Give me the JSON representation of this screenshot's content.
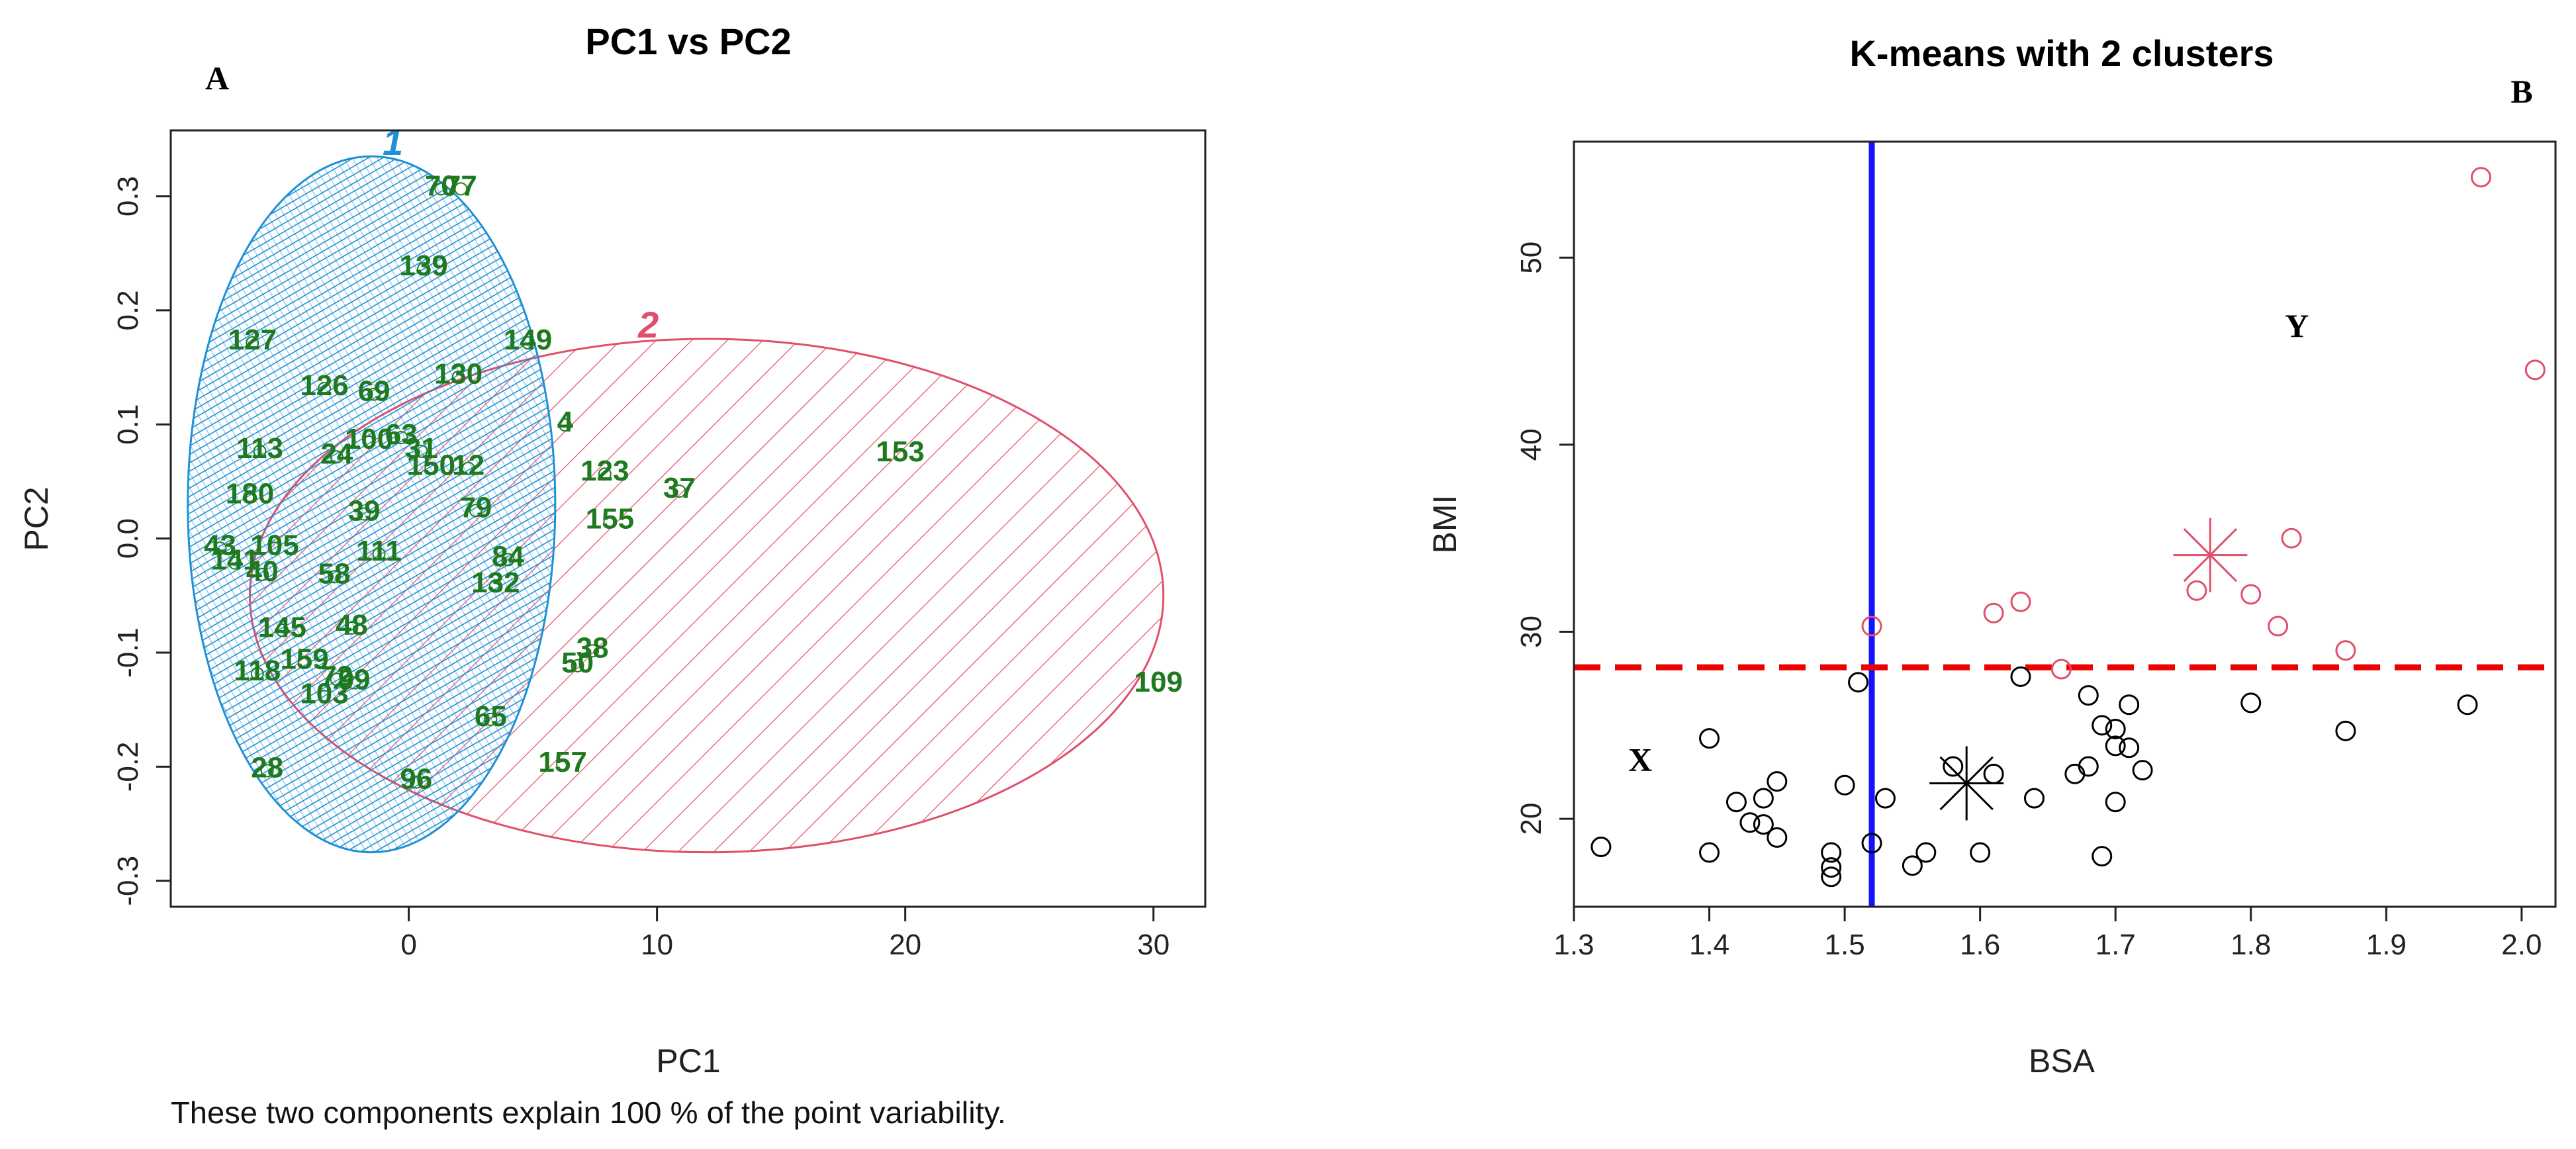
{
  "chart_data": [
    {
      "type": "scatter",
      "panel_label": "A",
      "title": "PC1 vs PC2",
      "xlabel": "PC1",
      "ylabel": "PC2",
      "xlim": [
        -9,
        31.5
      ],
      "ylim": [
        -0.31,
        0.345
      ],
      "xticks": [
        0,
        10,
        20,
        30
      ],
      "yticks": [
        -0.3,
        -0.2,
        -0.1,
        0.0,
        0.1,
        0.2,
        0.3
      ],
      "ytick_labels": [
        "-0.3",
        "-0.2",
        "-0.1",
        "0.0",
        "0.1",
        "0.2",
        "0.3"
      ],
      "note": "These two components explain 100 % of the point variability.",
      "colors": {
        "cluster1": "#1e90d6",
        "cluster2": "#e0506a",
        "labels": "#1f7a1f"
      },
      "clusters": [
        {
          "name": "1",
          "center": [
            -1.5,
            0.03
          ],
          "semi_x": 7.4,
          "semi_y": 0.305,
          "fill": "cross-hatch"
        },
        {
          "name": "2",
          "center": [
            12.0,
            -0.05
          ],
          "semi_x": 18.4,
          "semi_y": 0.225,
          "fill": "diagonal-hatch"
        }
      ],
      "points": [
        {
          "label": "70",
          "x": 1.3,
          "y": 0.31
        },
        {
          "label": "77",
          "x": 2.1,
          "y": 0.31
        },
        {
          "label": "139",
          "x": 0.6,
          "y": 0.24
        },
        {
          "label": "127",
          "x": -6.3,
          "y": 0.175
        },
        {
          "label": "149",
          "x": 4.8,
          "y": 0.175
        },
        {
          "label": "126",
          "x": -3.4,
          "y": 0.135
        },
        {
          "label": "130",
          "x": 2.0,
          "y": 0.145
        },
        {
          "label": "69",
          "x": -1.4,
          "y": 0.13
        },
        {
          "label": "4",
          "x": 6.3,
          "y": 0.103
        },
        {
          "label": "113",
          "x": -6.0,
          "y": 0.08
        },
        {
          "label": "24",
          "x": -2.9,
          "y": 0.075
        },
        {
          "label": "100",
          "x": -1.6,
          "y": 0.088
        },
        {
          "label": "63",
          "x": -0.3,
          "y": 0.092
        },
        {
          "label": "31",
          "x": 0.5,
          "y": 0.08
        },
        {
          "label": "150",
          "x": 0.9,
          "y": 0.065
        },
        {
          "label": "12",
          "x": 2.4,
          "y": 0.065
        },
        {
          "label": "153",
          "x": 19.8,
          "y": 0.077
        },
        {
          "label": "123",
          "x": 7.9,
          "y": 0.06
        },
        {
          "label": "37",
          "x": 10.9,
          "y": 0.045
        },
        {
          "label": "180",
          "x": -6.4,
          "y": 0.04
        },
        {
          "label": "79",
          "x": 2.7,
          "y": 0.028
        },
        {
          "label": "155",
          "x": 8.1,
          "y": 0.018
        },
        {
          "label": "39",
          "x": -1.8,
          "y": 0.025
        },
        {
          "label": "43",
          "x": -7.6,
          "y": -0.005
        },
        {
          "label": "105",
          "x": -5.4,
          "y": -0.005
        },
        {
          "label": "111",
          "x": -1.2,
          "y": -0.01
        },
        {
          "label": "84",
          "x": 4.0,
          "y": -0.015
        },
        {
          "label": "141",
          "x": -7.0,
          "y": -0.018
        },
        {
          "label": "40",
          "x": -5.9,
          "y": -0.028
        },
        {
          "label": "58",
          "x": -3.0,
          "y": -0.03
        },
        {
          "label": "132",
          "x": 3.5,
          "y": -0.038
        },
        {
          "label": "145",
          "x": -5.1,
          "y": -0.077
        },
        {
          "label": "48",
          "x": -2.3,
          "y": -0.075
        },
        {
          "label": "38",
          "x": 7.4,
          "y": -0.095
        },
        {
          "label": "159",
          "x": -4.2,
          "y": -0.105
        },
        {
          "label": "50",
          "x": 6.8,
          "y": -0.108
        },
        {
          "label": "118",
          "x": -6.1,
          "y": -0.115
        },
        {
          "label": "72",
          "x": -2.9,
          "y": -0.12
        },
        {
          "label": "99",
          "x": -2.2,
          "y": -0.123
        },
        {
          "label": "103",
          "x": -3.4,
          "y": -0.135
        },
        {
          "label": "109",
          "x": 30.2,
          "y": -0.125
        },
        {
          "label": "65",
          "x": 3.3,
          "y": -0.155
        },
        {
          "label": "157",
          "x": 6.2,
          "y": -0.195
        },
        {
          "label": "28",
          "x": -5.7,
          "y": -0.2
        },
        {
          "label": "96",
          "x": 0.3,
          "y": -0.21
        }
      ]
    },
    {
      "type": "scatter",
      "panel_label": "B",
      "title": "K-means with 2 clusters",
      "xlabel": "BSA",
      "ylabel": "BMI",
      "xlim": [
        1.3,
        2.025
      ],
      "ylim": [
        15.3,
        56.2
      ],
      "xticks": [
        1.3,
        1.4,
        1.5,
        1.6,
        1.7,
        1.8,
        1.9,
        2.0
      ],
      "xtick_labels": [
        "1.3",
        "1.4",
        "1.5",
        "1.6",
        "1.7",
        "1.8",
        "1.9",
        "2.0"
      ],
      "yticks": [
        20,
        30,
        40,
        50
      ],
      "vline_x": 1.52,
      "hline_y": 28.1,
      "colors": {
        "clusterX": "#000000",
        "clusterY": "#e0506a",
        "vline": "#1212ff",
        "hline": "#ee0000"
      },
      "region_labels": [
        {
          "text": "X",
          "x": 1.349,
          "y": 23.2
        },
        {
          "text": "Y",
          "x": 1.834,
          "y": 46.4
        }
      ],
      "centers": [
        {
          "cluster": "X",
          "x": 1.59,
          "y": 21.9
        },
        {
          "cluster": "Y",
          "x": 1.77,
          "y": 34.1
        }
      ],
      "series": [
        {
          "name": "X",
          "points": [
            [
              1.32,
              18.5
            ],
            [
              1.4,
              24.3
            ],
            [
              1.4,
              18.2
            ],
            [
              1.42,
              20.9
            ],
            [
              1.43,
              19.8
            ],
            [
              1.44,
              19.7
            ],
            [
              1.44,
              21.1
            ],
            [
              1.45,
              22.0
            ],
            [
              1.45,
              19.0
            ],
            [
              1.49,
              18.2
            ],
            [
              1.49,
              17.4
            ],
            [
              1.49,
              16.9
            ],
            [
              1.5,
              21.8
            ],
            [
              1.51,
              27.3
            ],
            [
              1.52,
              18.7
            ],
            [
              1.53,
              21.1
            ],
            [
              1.55,
              17.5
            ],
            [
              1.56,
              18.2
            ],
            [
              1.58,
              22.8
            ],
            [
              1.6,
              18.2
            ],
            [
              1.61,
              22.4
            ],
            [
              1.63,
              27.6
            ],
            [
              1.64,
              21.1
            ],
            [
              1.67,
              22.4
            ],
            [
              1.68,
              26.6
            ],
            [
              1.68,
              22.8
            ],
            [
              1.69,
              25.0
            ],
            [
              1.69,
              18.0
            ],
            [
              1.7,
              24.8
            ],
            [
              1.7,
              23.9
            ],
            [
              1.7,
              20.9
            ],
            [
              1.71,
              26.1
            ],
            [
              1.71,
              23.8
            ],
            [
              1.72,
              22.6
            ],
            [
              1.8,
              26.2
            ],
            [
              1.87,
              24.7
            ],
            [
              1.96,
              26.1
            ]
          ]
        },
        {
          "name": "Y",
          "points": [
            [
              1.52,
              30.3
            ],
            [
              1.61,
              31.0
            ],
            [
              1.63,
              31.6
            ],
            [
              1.66,
              28.0
            ],
            [
              1.76,
              32.2
            ],
            [
              1.8,
              32.0
            ],
            [
              1.82,
              30.3
            ],
            [
              1.83,
              35.0
            ],
            [
              1.87,
              29.0
            ],
            [
              1.97,
              54.3
            ],
            [
              2.01,
              44.0
            ]
          ]
        }
      ]
    }
  ]
}
